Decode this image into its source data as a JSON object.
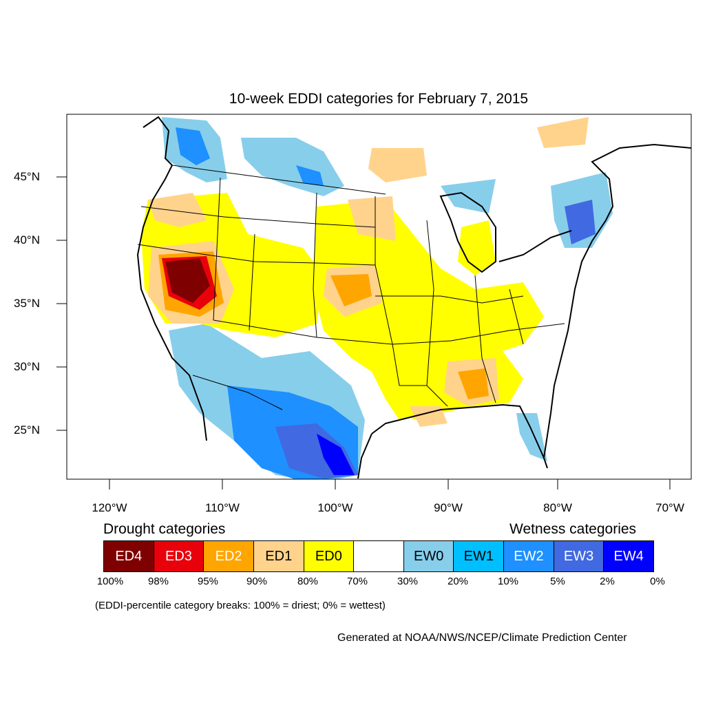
{
  "title": "10-week EDDI categories for February 7, 2015",
  "latitude_labels": [
    "45°N",
    "40°N",
    "35°N",
    "30°N",
    "25°N"
  ],
  "longitude_labels": [
    "120°W",
    "110°W",
    "100°W",
    "90°W",
    "80°W",
    "70°W"
  ],
  "legend": {
    "drought_heading": "Drought categories",
    "wetness_heading": "Wetness categories",
    "categories": [
      {
        "label": "ED4",
        "color": "#7f0000",
        "text_color": "#ffffff"
      },
      {
        "label": "ED3",
        "color": "#e8000b",
        "text_color": "#ffffff"
      },
      {
        "label": "ED2",
        "color": "#ffa500",
        "text_color": "#ffffff"
      },
      {
        "label": "ED1",
        "color": "#ffd38c",
        "text_color": "#000000"
      },
      {
        "label": "ED0",
        "color": "#ffff00",
        "text_color": "#000000"
      },
      {
        "label": "",
        "color": "#ffffff",
        "text_color": "#000000"
      },
      {
        "label": "EW0",
        "color": "#87ceeb",
        "text_color": "#000000"
      },
      {
        "label": "EW1",
        "color": "#00bfff",
        "text_color": "#000000"
      },
      {
        "label": "EW2",
        "color": "#1e90ff",
        "text_color": "#ffffff"
      },
      {
        "label": "EW3",
        "color": "#4169e1",
        "text_color": "#ffffff"
      },
      {
        "label": "EW4",
        "color": "#0000ff",
        "text_color": "#ffffff"
      }
    ],
    "percentile_breaks": [
      "100%",
      "98%",
      "95%",
      "90%",
      "80%",
      "70%",
      "30%",
      "20%",
      "10%",
      "5%",
      "2%",
      "0%"
    ]
  },
  "note": "(EDDI-percentile category breaks: 100% = driest; 0% = wettest)",
  "credit": "Generated at NOAA/NWS/NCEP/Climate Prediction Center"
}
